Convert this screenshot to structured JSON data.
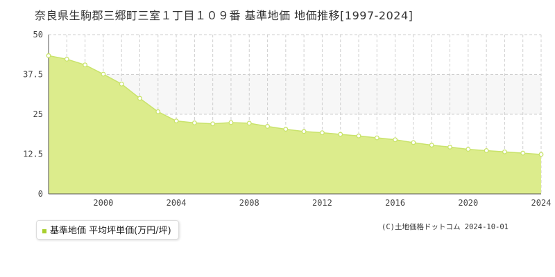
{
  "title": "奈良県生駒郡三郷町三室１丁目１０９番 基準地価 地価推移[1997-2024]",
  "legend": {
    "label": "基準地価 平均坪単価(万円/坪)"
  },
  "copyright": "(C)土地価格ドットコム 2024-10-01",
  "colors": {
    "line": "#c9e36b",
    "fill": "#dcec8c",
    "band": "#f7f7f7",
    "marker_fill": "#ffffff",
    "swatch": "#a8cf2e"
  },
  "chart_data": {
    "type": "area",
    "title": "奈良県生駒郡三郷町三室１丁目１０９番 基準地価 地価推移[1997-2024]",
    "xlabel": "",
    "ylabel": "",
    "xlim": [
      1997,
      2024
    ],
    "ylim": [
      0,
      50
    ],
    "y_ticks": [
      "0",
      "12.5",
      "25",
      "37.5",
      "50"
    ],
    "x_ticks": [
      "2000",
      "2004",
      "2008",
      "2012",
      "2016",
      "2020",
      "2024"
    ],
    "grid": true,
    "legend": "bottom-left",
    "series": [
      {
        "name": "基準地価 平均坪単価(万円/坪)",
        "x": [
          1997,
          1998,
          1999,
          2000,
          2001,
          2002,
          2003,
          2004,
          2005,
          2006,
          2007,
          2008,
          2009,
          2010,
          2011,
          2012,
          2013,
          2014,
          2015,
          2016,
          2017,
          2018,
          2019,
          2020,
          2021,
          2022,
          2023,
          2024
        ],
        "values": [
          43.4,
          42.3,
          40.5,
          37.6,
          34.5,
          30.0,
          25.8,
          22.9,
          22.3,
          22.0,
          22.4,
          22.2,
          21.2,
          20.3,
          19.6,
          19.2,
          18.7,
          18.2,
          17.6,
          17.0,
          16.1,
          15.3,
          14.7,
          14.0,
          13.6,
          13.2,
          12.8,
          12.4
        ]
      }
    ]
  }
}
